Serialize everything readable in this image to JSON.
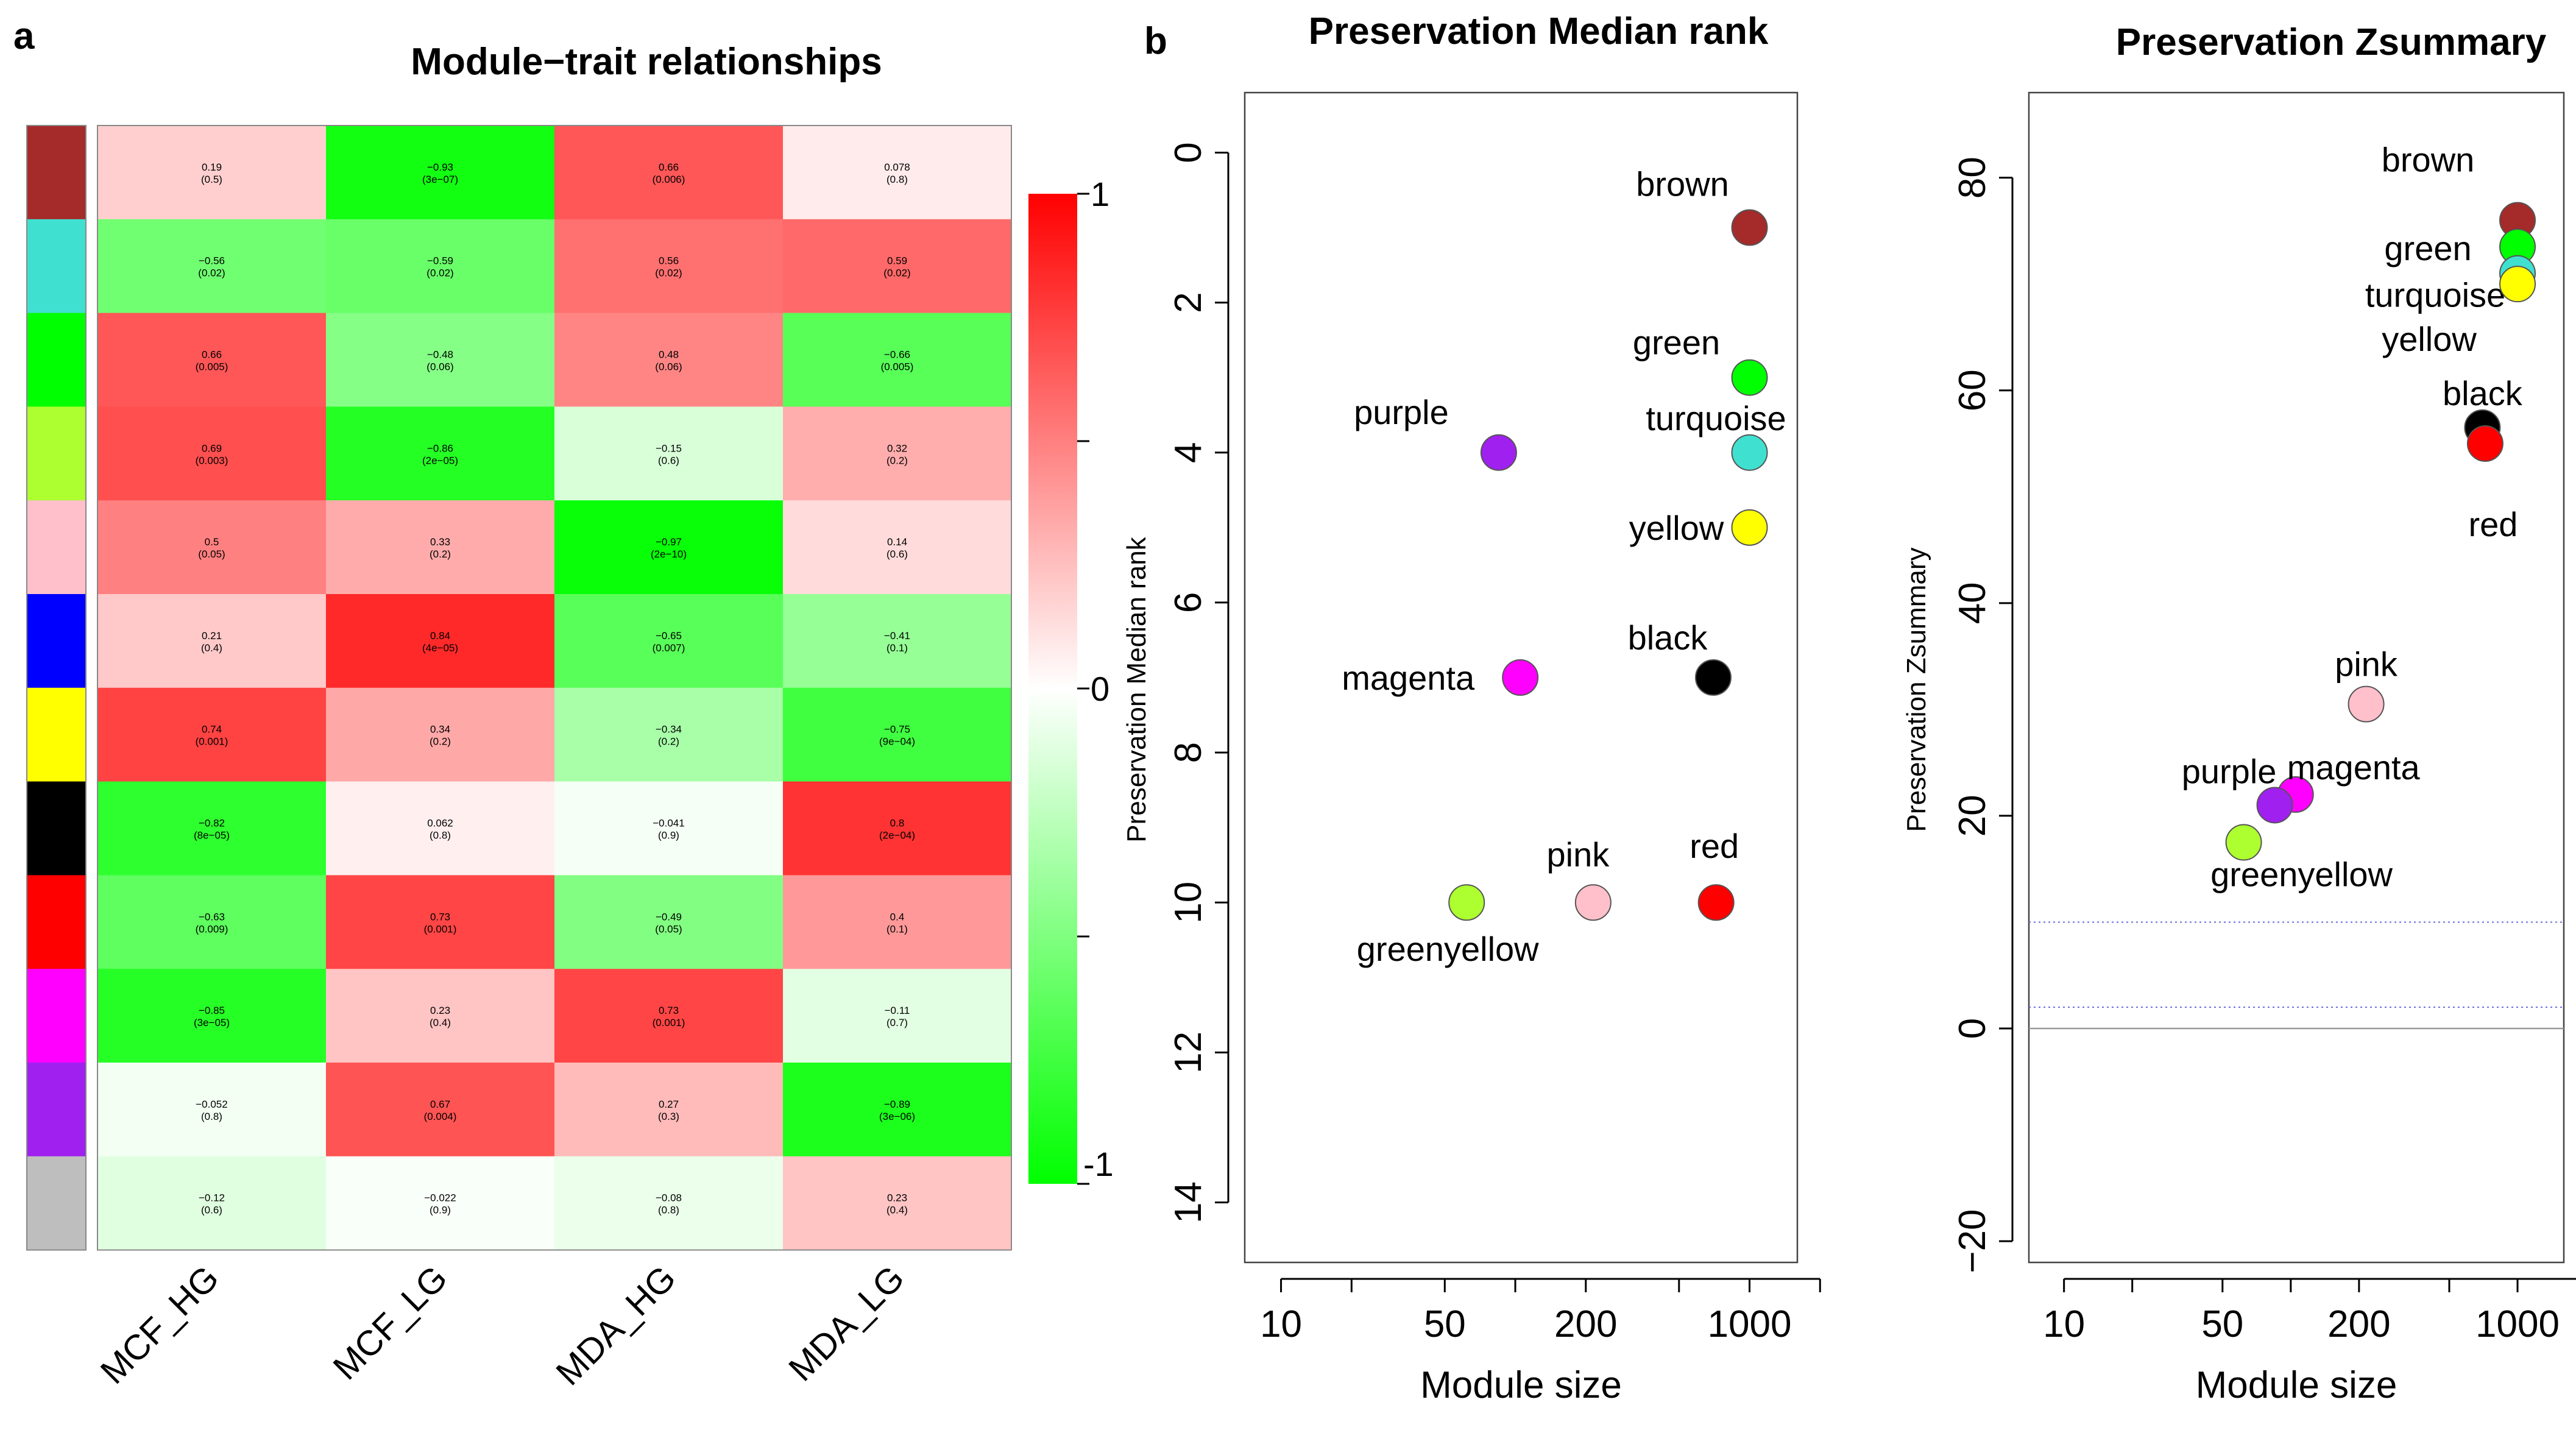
{
  "panel_labels": {
    "a": "a",
    "b": "b"
  },
  "chart_data": [
    {
      "type": "heatmap",
      "title": "Module−trait relationships",
      "columns": [
        "MCF_HG",
        "MCF_LG",
        "MDA_HG",
        "MDA_LG"
      ],
      "rows": [
        {
          "module": "brown",
          "color": "#a52a2a",
          "values": [
            0.19,
            -0.93,
            0.66,
            0.078
          ],
          "pvalues": [
            "(0.5)",
            "(3e−07)",
            "(0.006)",
            "(0.8)"
          ],
          "value_labels": [
            "0.19",
            "−0.93",
            "0.66",
            "0.078"
          ]
        },
        {
          "module": "turquoise",
          "color": "#40e0d0",
          "values": [
            -0.56,
            -0.59,
            0.56,
            0.59
          ],
          "pvalues": [
            "(0.02)",
            "(0.02)",
            "(0.02)",
            "(0.02)"
          ],
          "value_labels": [
            "−0.56",
            "−0.59",
            "0.56",
            "0.59"
          ]
        },
        {
          "module": "green",
          "color": "#00ff00",
          "values": [
            0.66,
            -0.48,
            0.48,
            -0.66
          ],
          "pvalues": [
            "(0.005)",
            "(0.06)",
            "(0.06)",
            "(0.005)"
          ],
          "value_labels": [
            "0.66",
            "−0.48",
            "0.48",
            "−0.66"
          ]
        },
        {
          "module": "greenyellow",
          "color": "#adff2f",
          "values": [
            0.69,
            -0.86,
            -0.15,
            0.32
          ],
          "pvalues": [
            "(0.003)",
            "(2e−05)",
            "(0.6)",
            "(0.2)"
          ],
          "value_labels": [
            "0.69",
            "−0.86",
            "−0.15",
            "0.32"
          ]
        },
        {
          "module": "pink",
          "color": "#ffc0cb",
          "values": [
            0.5,
            0.33,
            -0.97,
            0.14
          ],
          "pvalues": [
            "(0.05)",
            "(0.2)",
            "(2e−10)",
            "(0.6)"
          ],
          "value_labels": [
            "0.5",
            "0.33",
            "−0.97",
            "0.14"
          ]
        },
        {
          "module": "blue",
          "color": "#0000ff",
          "values": [
            0.21,
            0.84,
            -0.65,
            -0.41
          ],
          "pvalues": [
            "(0.4)",
            "(4e−05)",
            "(0.007)",
            "(0.1)"
          ],
          "value_labels": [
            "0.21",
            "0.84",
            "−0.65",
            "−0.41"
          ]
        },
        {
          "module": "yellow",
          "color": "#ffff00",
          "values": [
            0.74,
            0.34,
            -0.34,
            -0.75
          ],
          "pvalues": [
            "(0.001)",
            "(0.2)",
            "(0.2)",
            "(9e−04)"
          ],
          "value_labels": [
            "0.74",
            "0.34",
            "−0.34",
            "−0.75"
          ]
        },
        {
          "module": "black",
          "color": "#000000",
          "values": [
            -0.82,
            0.062,
            -0.041,
            0.8
          ],
          "pvalues": [
            "(8e−05)",
            "(0.8)",
            "(0.9)",
            "(2e−04)"
          ],
          "value_labels": [
            "−0.82",
            "0.062",
            "−0.041",
            "0.8"
          ]
        },
        {
          "module": "red",
          "color": "#ff0000",
          "values": [
            -0.63,
            0.73,
            -0.49,
            0.4
          ],
          "pvalues": [
            "(0.009)",
            "(0.001)",
            "(0.05)",
            "(0.1)"
          ],
          "value_labels": [
            "−0.63",
            "0.73",
            "−0.49",
            "0.4"
          ]
        },
        {
          "module": "magenta",
          "color": "#ff00ff",
          "values": [
            -0.85,
            0.23,
            0.73,
            -0.11
          ],
          "pvalues": [
            "(3e−05)",
            "(0.4)",
            "(0.001)",
            "(0.7)"
          ],
          "value_labels": [
            "−0.85",
            "0.23",
            "0.73",
            "−0.11"
          ]
        },
        {
          "module": "purple",
          "color": "#a020f0",
          "values": [
            -0.052,
            0.67,
            0.27,
            -0.89
          ],
          "pvalues": [
            "(0.8)",
            "(0.004)",
            "(0.3)",
            "(3e−06)"
          ],
          "value_labels": [
            "−0.052",
            "0.67",
            "0.27",
            "−0.89"
          ]
        },
        {
          "module": "grey",
          "color": "#bebebe",
          "values": [
            -0.12,
            -0.022,
            -0.08,
            0.23
          ],
          "pvalues": [
            "(0.6)",
            "(0.9)",
            "(0.8)",
            "(0.4)"
          ],
          "value_labels": [
            "−0.12",
            "−0.022",
            "−0.08",
            "0.23"
          ]
        }
      ],
      "colorbar": {
        "range": [
          -1,
          1
        ],
        "tick_labels": [
          "1",
          "0",
          "-1"
        ],
        "low_color": "#00ff00",
        "mid_color": "#ffffff",
        "high_color": "#ff0000"
      }
    },
    {
      "type": "scatter",
      "title": "Preservation Median rank",
      "xlabel": "Module size",
      "ylabel": "Preservation Median rank",
      "xscale": "log",
      "xlim": [
        7,
        1600
      ],
      "ylim": [
        14.8,
        -0.8
      ],
      "y_inverted": true,
      "xticks": [
        10,
        20,
        50,
        100,
        200,
        500,
        1000,
        2000
      ],
      "xtick_labels": [
        "10",
        "",
        "50",
        "",
        "200",
        "",
        "1000",
        ""
      ],
      "yticks": [
        0,
        2,
        4,
        6,
        8,
        10,
        12,
        14
      ],
      "ytick_labels": [
        "0",
        "2",
        "4",
        "6",
        "8",
        "10",
        "12",
        "14"
      ],
      "points": [
        {
          "label": "brown",
          "color": "#a52a2a",
          "x": 1000,
          "y": 1
        },
        {
          "label": "green",
          "color": "#00ff00",
          "x": 1000,
          "y": 3
        },
        {
          "label": "turquoise",
          "color": "#40e0d0",
          "x": 1000,
          "y": 4
        },
        {
          "label": "purple",
          "color": "#a020f0",
          "x": 85,
          "y": 4
        },
        {
          "label": "yellow",
          "color": "#ffff00",
          "x": 1000,
          "y": 5
        },
        {
          "label": "magenta",
          "color": "#ff00ff",
          "x": 105,
          "y": 7
        },
        {
          "label": "black",
          "color": "#000000",
          "x": 700,
          "y": 7
        },
        {
          "label": "greenyellow",
          "color": "#adff2f",
          "x": 62,
          "y": 10
        },
        {
          "label": "pink",
          "color": "#ffc0cb",
          "x": 215,
          "y": 10
        },
        {
          "label": "red",
          "color": "#ff0000",
          "x": 720,
          "y": 10
        }
      ]
    },
    {
      "type": "scatter",
      "title": "Preservation Zsummary",
      "xlabel": "Module size",
      "ylabel": "Preservation Zsummary",
      "xscale": "log",
      "xlim": [
        7,
        1600
      ],
      "ylim": [
        -22,
        88
      ],
      "xticks": [
        10,
        20,
        50,
        100,
        200,
        500,
        1000,
        2000
      ],
      "xtick_labels": [
        "10",
        "",
        "50",
        "",
        "200",
        "",
        "1000",
        ""
      ],
      "yticks": [
        -20,
        0,
        20,
        40,
        60,
        80
      ],
      "ytick_labels": [
        "−20",
        "0",
        "20",
        "40",
        "60",
        "80"
      ],
      "reference_lines": [
        {
          "y": 0,
          "color": "#999999",
          "style": "solid"
        },
        {
          "y": 2,
          "color": "#6a6ae0",
          "style": "dotted"
        },
        {
          "y": 10,
          "color": "#6a6ae0",
          "style": "dotted"
        }
      ],
      "points": [
        {
          "label": "brown",
          "color": "#a52a2a",
          "x": 1000,
          "y": 76
        },
        {
          "label": "green",
          "color": "#00ff00",
          "x": 1000,
          "y": 73.5
        },
        {
          "label": "turquoise",
          "color": "#40e0d0",
          "x": 1000,
          "y": 71
        },
        {
          "label": "yellow",
          "color": "#ffff00",
          "x": 1000,
          "y": 70
        },
        {
          "label": "black",
          "color": "#000000",
          "x": 700,
          "y": 56.5
        },
        {
          "label": "red",
          "color": "#ff0000",
          "x": 720,
          "y": 55
        },
        {
          "label": "pink",
          "color": "#ffc0cb",
          "x": 215,
          "y": 30.5
        },
        {
          "label": "magenta",
          "color": "#ff00ff",
          "x": 105,
          "y": 22
        },
        {
          "label": "purple",
          "color": "#a020f0",
          "x": 85,
          "y": 21
        },
        {
          "label": "greenyellow",
          "color": "#adff2f",
          "x": 62,
          "y": 17.5
        }
      ]
    }
  ]
}
